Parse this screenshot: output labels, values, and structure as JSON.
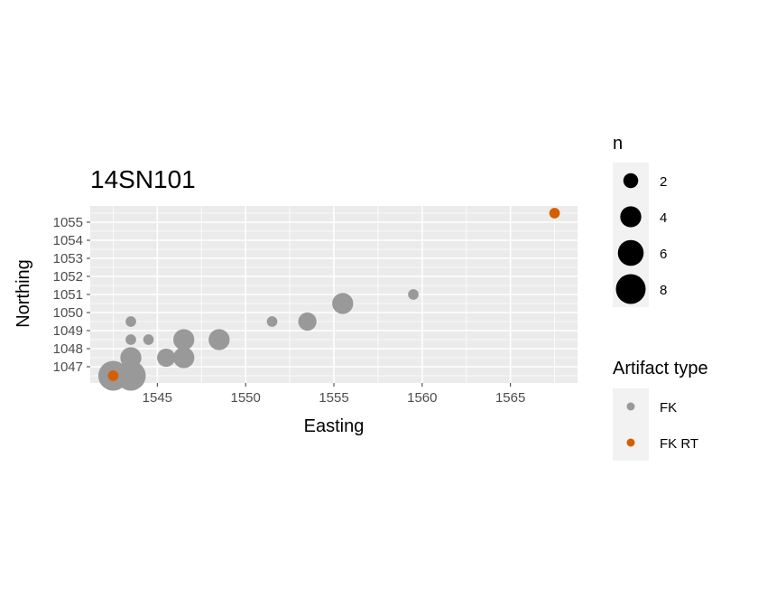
{
  "chart_data": {
    "type": "scatter",
    "title": "14SN101",
    "xlabel": "Easting",
    "ylabel": "Northing",
    "xlim": [
      1541.2,
      1568.8
    ],
    "ylim": [
      1046.1,
      1055.9
    ],
    "x_ticks": [
      1545,
      1550,
      1555,
      1560,
      1565
    ],
    "y_ticks": [
      1047,
      1048,
      1049,
      1050,
      1051,
      1052,
      1053,
      1054,
      1055
    ],
    "grid": true,
    "background": "#ebebeb",
    "size_legend": {
      "title": "n",
      "values": [
        2,
        4,
        6,
        8
      ]
    },
    "color_legend": {
      "title": "Artifact type",
      "entries": [
        {
          "label": "FK",
          "color": "#999999"
        },
        {
          "label": "FK RT",
          "color": "#d55e00"
        }
      ]
    },
    "series": [
      {
        "name": "FK",
        "color": "#999999",
        "points": [
          {
            "x": 1542.5,
            "y": 1046.5,
            "n": 8
          },
          {
            "x": 1543.5,
            "y": 1046.5,
            "n": 8
          },
          {
            "x": 1543.5,
            "y": 1047.5,
            "n": 4
          },
          {
            "x": 1543.5,
            "y": 1048.5,
            "n": 1
          },
          {
            "x": 1543.5,
            "y": 1049.5,
            "n": 1
          },
          {
            "x": 1544.5,
            "y": 1048.5,
            "n": 1
          },
          {
            "x": 1545.5,
            "y": 1047.5,
            "n": 3
          },
          {
            "x": 1546.5,
            "y": 1047.5,
            "n": 4
          },
          {
            "x": 1546.5,
            "y": 1048.5,
            "n": 4
          },
          {
            "x": 1548.5,
            "y": 1048.5,
            "n": 4
          },
          {
            "x": 1551.5,
            "y": 1049.5,
            "n": 1
          },
          {
            "x": 1553.5,
            "y": 1049.5,
            "n": 3
          },
          {
            "x": 1555.5,
            "y": 1050.5,
            "n": 4
          },
          {
            "x": 1559.5,
            "y": 1051.0,
            "n": 1
          }
        ]
      },
      {
        "name": "FK RT",
        "color": "#d55e00",
        "points": [
          {
            "x": 1542.5,
            "y": 1046.5,
            "n": 1
          },
          {
            "x": 1567.5,
            "y": 1055.5,
            "n": 1
          }
        ]
      }
    ]
  }
}
